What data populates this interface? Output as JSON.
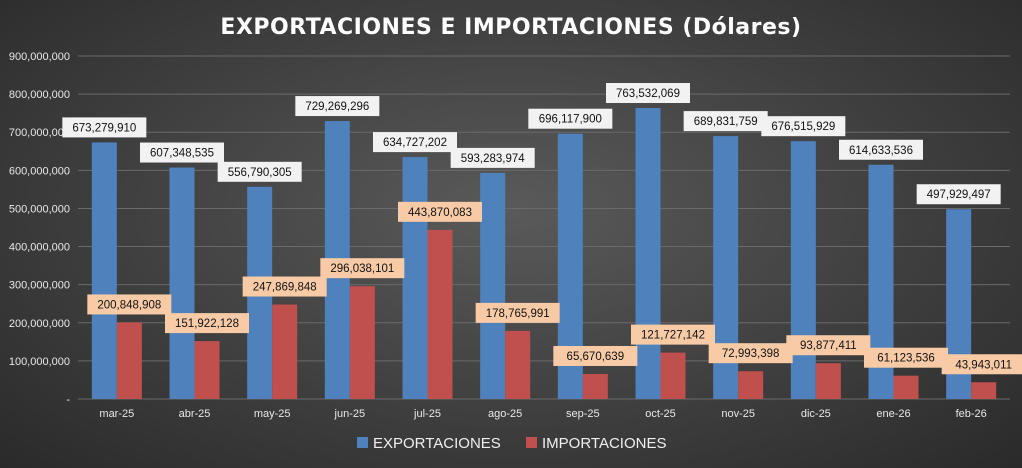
{
  "chart_data": {
    "type": "bar",
    "title": "EXPORTACIONES E IMPORTACIONES (Dólares)",
    "categories": [
      "mar-25",
      "abr-25",
      "may-25",
      "jun-25",
      "jul-25",
      "ago-25",
      "sep-25",
      "oct-25",
      "nov-25",
      "dic-25",
      "ene-26",
      "feb-26"
    ],
    "series": [
      {
        "name": "EXPORTACIONES",
        "color": "#4f81bd",
        "values": [
          673279910,
          607348535,
          556790305,
          729269296,
          634727202,
          593283974,
          696117900,
          763532069,
          689831759,
          676515929,
          614633536,
          497929497
        ],
        "labels": [
          "673,279,910",
          "607,348,535",
          "556,790,305",
          "729,269,296",
          "634,727,202",
          "593,283,974",
          "696,117,900",
          "763,532,069",
          "689,831,759",
          "676,515,929",
          "614,633,536",
          "497,929,497"
        ]
      },
      {
        "name": "IMPORTACIONES",
        "color": "#c0504d",
        "values": [
          200848908,
          151922128,
          247869848,
          296038101,
          443870083,
          178765991,
          65670639,
          121727142,
          72993398,
          93877411,
          61123536,
          43943011
        ],
        "labels": [
          "200,848,908",
          "151,922,128",
          "247,869,848",
          "296,038,101",
          "443,870,083",
          "178,765,991",
          "65,670,639",
          "121,727,142",
          "72,993,398",
          "93,877,411",
          "61,123,536",
          "43,943,011"
        ]
      }
    ],
    "ylim": [
      0,
      900000000
    ],
    "yticks": [
      0,
      100000000,
      200000000,
      300000000,
      400000000,
      500000000,
      600000000,
      700000000,
      800000000,
      900000000
    ],
    "ytick_labels": [
      "-",
      "100,000,000",
      "200,000,000",
      "300,000,000",
      "400,000,000",
      "500,000,000",
      "600,000,000",
      "700,000,000",
      "800,000,000",
      "900,000,000"
    ],
    "xlabel": "",
    "ylabel": "",
    "grid": true,
    "legend_position": "bottom"
  }
}
